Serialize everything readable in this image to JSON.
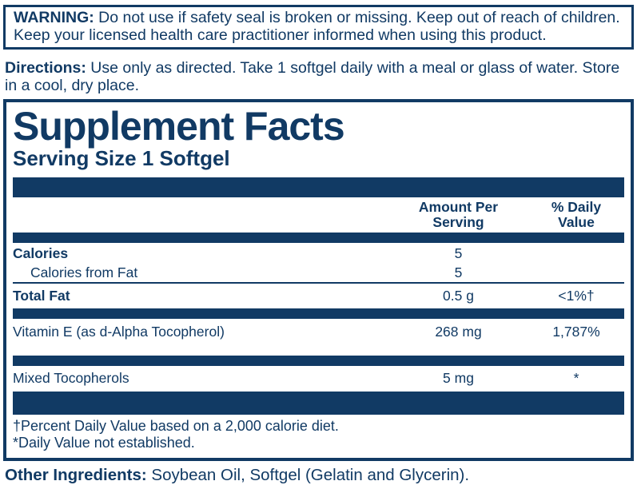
{
  "colors": {
    "navy": "#113a64"
  },
  "warning": {
    "label": "WARNING:",
    "text": "Do not use if safety seal is broken or missing. Keep out of reach of children. Keep your licensed health care practitioner informed when using this product."
  },
  "directions": {
    "label": "Directions:",
    "text": "Use only as directed. Take 1 softgel daily with a meal or glass of water. Store in a cool, dry place."
  },
  "supplement_facts": {
    "title": "Supplement Facts",
    "serving_size": "Serving Size 1 Softgel",
    "columns": {
      "amount": "Amount Per Serving",
      "daily": "% Daily Value"
    },
    "rows": [
      {
        "name": "Calories",
        "amount": "5",
        "daily": ""
      },
      {
        "name": "Calories from Fat",
        "amount": "5",
        "daily": ""
      },
      {
        "name": "Total Fat",
        "amount": "0.5 g",
        "daily": "<1%†"
      },
      {
        "name": "Vitamin E (as d-Alpha Tocopherol)",
        "amount": "268 mg",
        "daily": "1,787%"
      },
      {
        "name": "Mixed Tocopherols",
        "amount": "5 mg",
        "daily": "*"
      }
    ],
    "footnotes": [
      "†Percent Daily Value based on a 2,000 calorie diet.",
      "*Daily Value not established."
    ]
  },
  "other_ingredients": {
    "label": "Other Ingredients:",
    "text": "Soybean Oil, Softgel (Gelatin and Glycerin)."
  }
}
